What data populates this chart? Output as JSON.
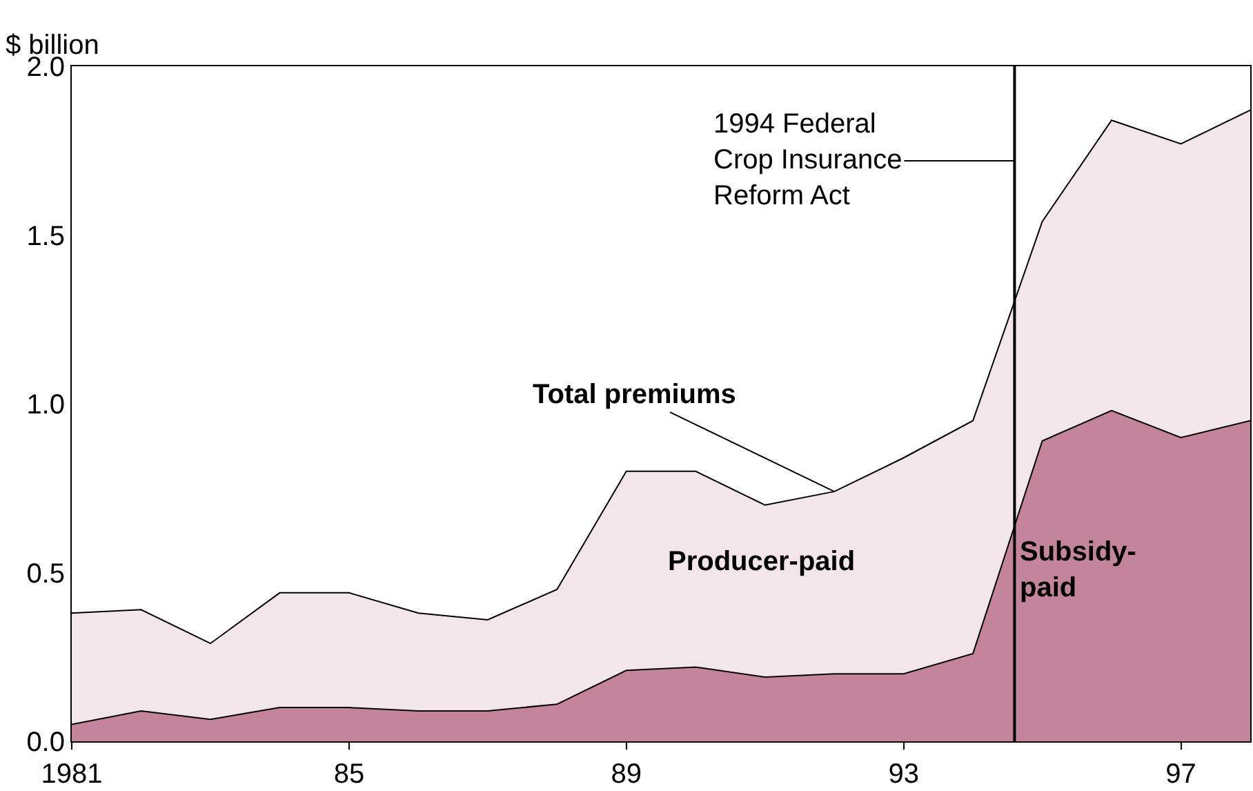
{
  "chart_data": {
    "type": "area",
    "stacked": true,
    "ylabel": "$ billion",
    "x": [
      1981,
      1982,
      1983,
      1984,
      1985,
      1986,
      1987,
      1988,
      1989,
      1990,
      1991,
      1992,
      1993,
      1994,
      1995,
      1996,
      1997,
      1998
    ],
    "series": [
      {
        "name": "Subsidy-paid",
        "color": "#c4849c",
        "values": [
          0.05,
          0.09,
          0.065,
          0.1,
          0.1,
          0.09,
          0.09,
          0.11,
          0.21,
          0.22,
          0.19,
          0.2,
          0.2,
          0.26,
          0.89,
          0.98,
          0.9,
          0.95
        ]
      },
      {
        "name": "Producer-paid",
        "color": "#f3e6ea",
        "values": [
          0.33,
          0.3,
          0.225,
          0.34,
          0.34,
          0.29,
          0.27,
          0.34,
          0.59,
          0.58,
          0.51,
          0.54,
          0.64,
          0.69,
          0.65,
          0.86,
          0.87,
          0.92
        ]
      }
    ],
    "xlim": [
      1981,
      1998
    ],
    "xticks": [
      1981,
      {
        "value": 1985,
        "label": "85"
      },
      {
        "value": 1989,
        "label": "89"
      },
      {
        "value": 1993,
        "label": "93"
      },
      {
        "value": 1997,
        "label": "97"
      }
    ],
    "ylim": [
      0,
      2
    ],
    "yticks": [
      {
        "value": 0,
        "label": "0.0"
      },
      {
        "value": 0.5,
        "label": "0.5"
      },
      {
        "value": 1,
        "label": "1.0"
      },
      {
        "value": 1.5,
        "label": "1.5"
      },
      {
        "value": 2,
        "label": "2.0"
      }
    ],
    "grid": false,
    "legend": false,
    "ref_lines": [
      {
        "axis": "x",
        "value": 1994.6,
        "label": "1994 Federal Crop Insurance Reform Act",
        "color": "#000000"
      }
    ],
    "annotations": [
      {
        "text": "Total premiums",
        "x": 1992,
        "y": 0.74
      }
    ]
  }
}
